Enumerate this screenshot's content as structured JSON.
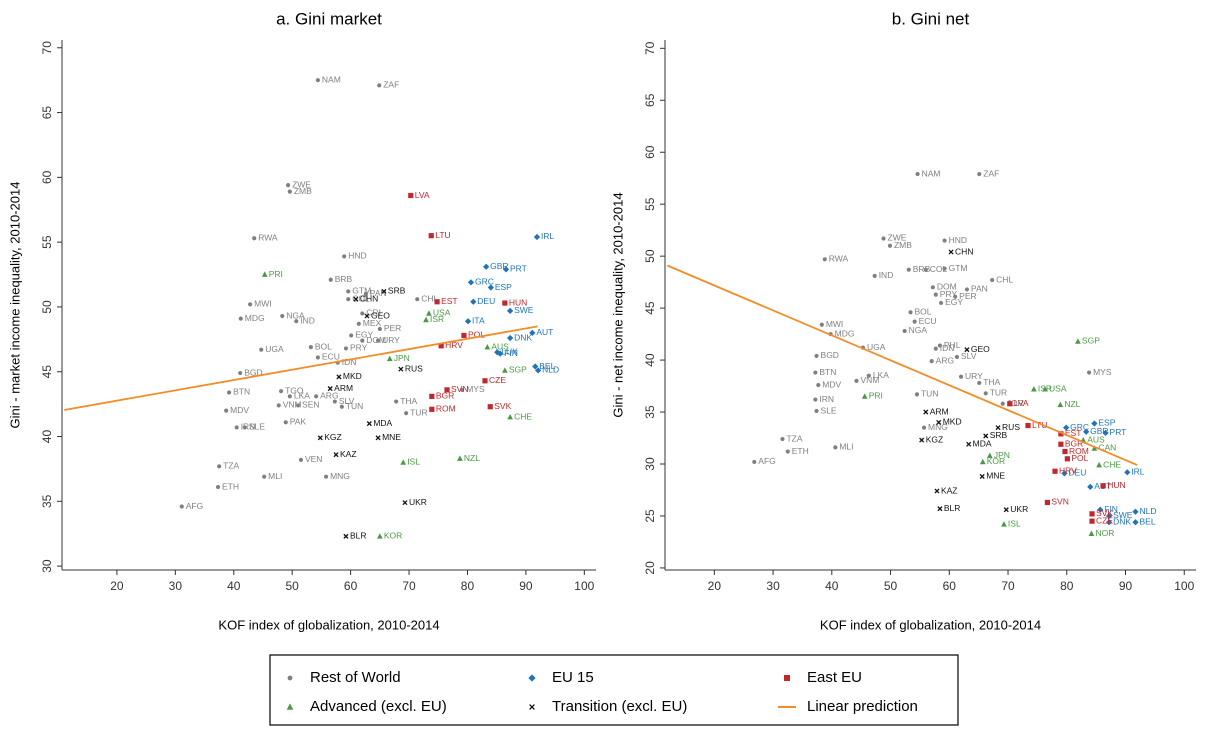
{
  "chart_data": [
    {
      "type": "scatter",
      "title": "a. Gini market",
      "xlabel": "KOF index of globalization, 2010-2014",
      "ylabel": "Gini - market income inequality, 2010-2014",
      "xlim": [
        10.6,
        102
      ],
      "ylim": [
        29.7,
        70.6
      ],
      "xticks": [
        20,
        30,
        40,
        50,
        60,
        70,
        80,
        90,
        100
      ],
      "yticks": [
        30,
        35,
        40,
        45,
        50,
        55,
        60,
        65,
        70
      ],
      "series": [
        {
          "name": "Rest of World",
          "color": "#7f7f7f",
          "marker": "circle",
          "labels": [
            "NAM",
            "ZAF",
            "ZWE",
            "ZMB",
            "RWA",
            "HND",
            "BRB",
            "GTM",
            "PAN",
            "COL",
            "CHL",
            "MWI",
            "MDG",
            "NGA",
            "IND",
            "CRI",
            "MEX",
            "PER",
            "EGY",
            "DOM",
            "URY",
            "BOL",
            "PRY",
            "UGA",
            "ECU",
            "IDN",
            "BGD",
            "MYS",
            "THA",
            "TUR",
            "BTN",
            "TGO",
            "LKA",
            "ARG",
            "SLV",
            "VNM",
            "SEN",
            "TUN",
            "MDV",
            "PAK",
            "IRN",
            "SLE",
            "VEN",
            "TZA",
            "MLI",
            "MNG",
            "ETH",
            "AFG"
          ],
          "x": [
            54.4,
            64.9,
            49.3,
            49.6,
            43.5,
            58.9,
            56.6,
            59.6,
            62.6,
            59.6,
            71.4,
            42.8,
            41.2,
            48.3,
            50.7,
            62.0,
            61.4,
            65.0,
            60.1,
            62.0,
            64.7,
            53.2,
            59.2,
            44.7,
            54.4,
            57.8,
            41.1,
            79.1,
            67.8,
            69.5,
            39.2,
            48.1,
            49.6,
            54.1,
            57.3,
            47.7,
            51.0,
            58.5,
            38.7,
            48.9,
            40.5,
            41.9,
            51.5,
            37.5,
            45.2,
            55.8,
            37.3,
            31.1
          ],
          "values": [
            67.5,
            67.1,
            59.4,
            58.9,
            55.3,
            53.9,
            52.1,
            51.2,
            51.0,
            50.6,
            50.6,
            50.2,
            49.1,
            49.3,
            48.9,
            49.5,
            48.7,
            48.3,
            47.8,
            47.4,
            47.4,
            46.9,
            46.8,
            46.7,
            46.1,
            45.7,
            44.9,
            43.6,
            42.7,
            41.8,
            43.4,
            43.5,
            43.1,
            43.1,
            42.7,
            42.4,
            42.4,
            42.3,
            42.0,
            41.1,
            40.7,
            40.7,
            38.2,
            37.7,
            36.9,
            36.9,
            36.1,
            34.6
          ]
        },
        {
          "name": "EU 15",
          "color": "#1f74b8",
          "marker": "diamond",
          "labels": [
            "GBR",
            "PRT",
            "GRC",
            "ESP",
            "IRL",
            "DEU",
            "SWE",
            "ITA",
            "AUT",
            "DNK",
            "LUX",
            "FIN",
            "BEL",
            "NLD"
          ],
          "x": [
            83.2,
            86.6,
            80.6,
            84.0,
            91.9,
            81.0,
            87.3,
            80.1,
            91.1,
            87.3,
            85.1,
            85.6,
            91.6,
            92.1
          ],
          "values": [
            53.1,
            52.9,
            51.9,
            51.5,
            55.4,
            50.4,
            49.7,
            48.9,
            48.0,
            47.6,
            46.5,
            46.4,
            45.4,
            45.1
          ]
        },
        {
          "name": "East EU",
          "color": "#c0282d",
          "marker": "square",
          "labels": [
            "LVA",
            "LTU",
            "EST",
            "HUN",
            "POL",
            "HRV",
            "CZE",
            "SVN",
            "BGR",
            "ROM",
            "SVK"
          ],
          "x": [
            70.3,
            73.8,
            74.8,
            86.4,
            79.4,
            75.5,
            83.0,
            76.5,
            73.9,
            73.9,
            83.9
          ],
          "values": [
            58.6,
            55.5,
            50.4,
            50.3,
            47.8,
            47.0,
            44.3,
            43.6,
            43.1,
            42.1,
            42.3
          ]
        },
        {
          "name": "Advanced (excl. EU)",
          "color": "#4a9a45",
          "marker": "triangle",
          "labels": [
            "PRI",
            "USA",
            "ISR",
            "JPN",
            "AUS",
            "SGP",
            "CHE",
            "ISL",
            "NZL",
            "KOR"
          ],
          "x": [
            45.3,
            73.4,
            72.9,
            66.7,
            83.4,
            86.4,
            87.3,
            69.0,
            78.7,
            65.0
          ],
          "values": [
            52.5,
            49.5,
            49.0,
            46.0,
            46.9,
            45.1,
            41.5,
            38.0,
            38.3,
            32.3
          ]
        },
        {
          "name": "Transition (excl. EU)",
          "color": "#111111",
          "marker": "x",
          "labels": [
            "SRB",
            "CHN",
            "GEO",
            "RUS",
            "MKD",
            "ARM",
            "MDA",
            "KGZ",
            "MNE",
            "KAZ",
            "UKR",
            "BLR"
          ],
          "x": [
            65.7,
            60.9,
            62.8,
            68.6,
            58.0,
            56.5,
            63.2,
            54.8,
            64.7,
            57.5,
            69.3,
            59.2
          ],
          "values": [
            51.2,
            50.6,
            49.3,
            45.2,
            44.6,
            43.7,
            41.0,
            39.9,
            39.9,
            38.6,
            34.9,
            32.3
          ]
        },
        {
          "name": "Linear prediction",
          "color": "#f28c28",
          "marker": "line",
          "x": [
            11,
            92
          ],
          "values": [
            42.05,
            48.5
          ]
        }
      ]
    },
    {
      "type": "scatter",
      "title": "b. Gini net",
      "xlabel": "KOF index of globalization, 2010-2014",
      "ylabel": "Gini - net income inequality, 2010-2014",
      "xlim": [
        11.6,
        102
      ],
      "ylim": [
        19.8,
        70.8
      ],
      "xticks": [
        20,
        30,
        40,
        50,
        60,
        70,
        80,
        90,
        100
      ],
      "yticks": [
        20,
        25,
        30,
        35,
        40,
        45,
        50,
        55,
        60,
        65,
        70
      ],
      "series": [
        {
          "color": "#7f7f7f",
          "marker": "circle",
          "labels": [
            "NAM",
            "ZAF",
            "ZWE",
            "ZMB",
            "HND",
            "RWA",
            "GTM",
            "BRB",
            "COL",
            "IND",
            "CHL",
            "DOM",
            "PAN",
            "PRY",
            "PER",
            "EGY",
            "BOL",
            "ECU",
            "MWI",
            "MDG",
            "NGA",
            "UGA",
            "PHL",
            "IDN",
            "SLV",
            "BGD",
            "ARG",
            "BTN",
            "LKA",
            "MYS",
            "URY",
            "THA",
            "TUR",
            "MDV",
            "VNM",
            "IRN",
            "TUN",
            "JOR",
            "SLE",
            "MNG",
            "TZA",
            "ETH",
            "MLI",
            "AFG"
          ],
          "x": [
            54.6,
            65.1,
            48.8,
            49.9,
            59.2,
            38.8,
            59.2,
            53.1,
            56.0,
            47.3,
            67.3,
            57.2,
            63.0,
            57.7,
            61.0,
            58.6,
            53.4,
            54.1,
            38.3,
            39.8,
            52.4,
            45.3,
            58.4,
            57.7,
            61.3,
            37.4,
            57.0,
            37.2,
            46.3,
            83.8,
            62.0,
            65.1,
            66.2,
            37.7,
            44.2,
            37.2,
            54.5,
            69.1,
            37.4,
            55.7,
            31.6,
            32.5,
            40.6,
            26.8
          ],
          "values": [
            57.9,
            57.9,
            51.7,
            51.0,
            51.5,
            49.7,
            48.8,
            48.7,
            48.7,
            48.1,
            47.7,
            47.0,
            46.8,
            46.3,
            46.1,
            45.5,
            44.6,
            43.7,
            43.4,
            42.5,
            42.8,
            41.2,
            41.4,
            41.1,
            40.3,
            40.4,
            39.9,
            38.8,
            38.5,
            38.8,
            38.4,
            37.8,
            36.8,
            37.6,
            38.0,
            36.2,
            36.7,
            35.8,
            35.1,
            33.5,
            32.4,
            31.2,
            31.6,
            30.2
          ]
        },
        {
          "color": "#1f74b8",
          "marker": "diamond",
          "labels": [
            "GRC",
            "ESP",
            "GBR",
            "PRT",
            "DEU",
            "IRL",
            "AUT",
            "FIN",
            "SWE",
            "NLD",
            "DNK",
            "BEL"
          ],
          "x": [
            79.9,
            84.7,
            83.3,
            86.6,
            79.6,
            90.3,
            84.0,
            85.7,
            87.2,
            91.7,
            87.2,
            91.7
          ],
          "values": [
            33.5,
            33.9,
            33.1,
            33.0,
            29.1,
            29.2,
            27.8,
            25.6,
            25.0,
            25.4,
            24.4,
            24.4
          ]
        },
        {
          "color": "#c0282d",
          "marker": "square",
          "labels": [
            "LVA",
            "LTU",
            "EST",
            "BGR",
            "ROM",
            "POL",
            "HRV",
            "HUN",
            "SVN",
            "SVK",
            "CZE"
          ],
          "x": [
            70.3,
            73.4,
            79.0,
            79.0,
            79.7,
            80.1,
            78.0,
            86.2,
            76.7,
            84.3,
            84.3
          ],
          "values": [
            35.8,
            33.7,
            32.9,
            31.9,
            31.2,
            30.5,
            29.3,
            27.9,
            26.3,
            25.2,
            24.5
          ]
        },
        {
          "color": "#4a9a45",
          "marker": "triangle",
          "labels": [
            "SGP",
            "ISR",
            "USA",
            "NZL",
            "PRI",
            "AUS",
            "CAN",
            "JPN",
            "KOR",
            "CHE",
            "NOR",
            "ISL"
          ],
          "x": [
            81.9,
            74.4,
            76.3,
            78.9,
            45.6,
            82.8,
            84.7,
            66.9,
            65.7,
            85.5,
            84.2,
            69.3
          ],
          "values": [
            41.8,
            37.2,
            37.2,
            35.7,
            36.5,
            32.3,
            31.5,
            30.8,
            30.2,
            29.9,
            23.3,
            24.2
          ]
        },
        {
          "color": "#111111",
          "marker": "x",
          "labels": [
            "CHN",
            "GEO",
            "ARM",
            "MKD",
            "RUS",
            "SRB",
            "KGZ",
            "MDA",
            "MNE",
            "KAZ",
            "UKR",
            "BLR"
          ],
          "x": [
            60.3,
            63.0,
            56.0,
            58.2,
            68.3,
            66.2,
            55.3,
            63.3,
            65.6,
            57.9,
            69.7,
            58.4
          ],
          "values": [
            50.4,
            41.0,
            35.0,
            34.0,
            33.5,
            32.7,
            32.3,
            31.9,
            28.8,
            27.4,
            25.6,
            25.7
          ]
        },
        {
          "color": "#f28c28",
          "marker": "line",
          "x": [
            12,
            92
          ],
          "values": [
            49.1,
            29.9
          ]
        }
      ]
    }
  ]
}
